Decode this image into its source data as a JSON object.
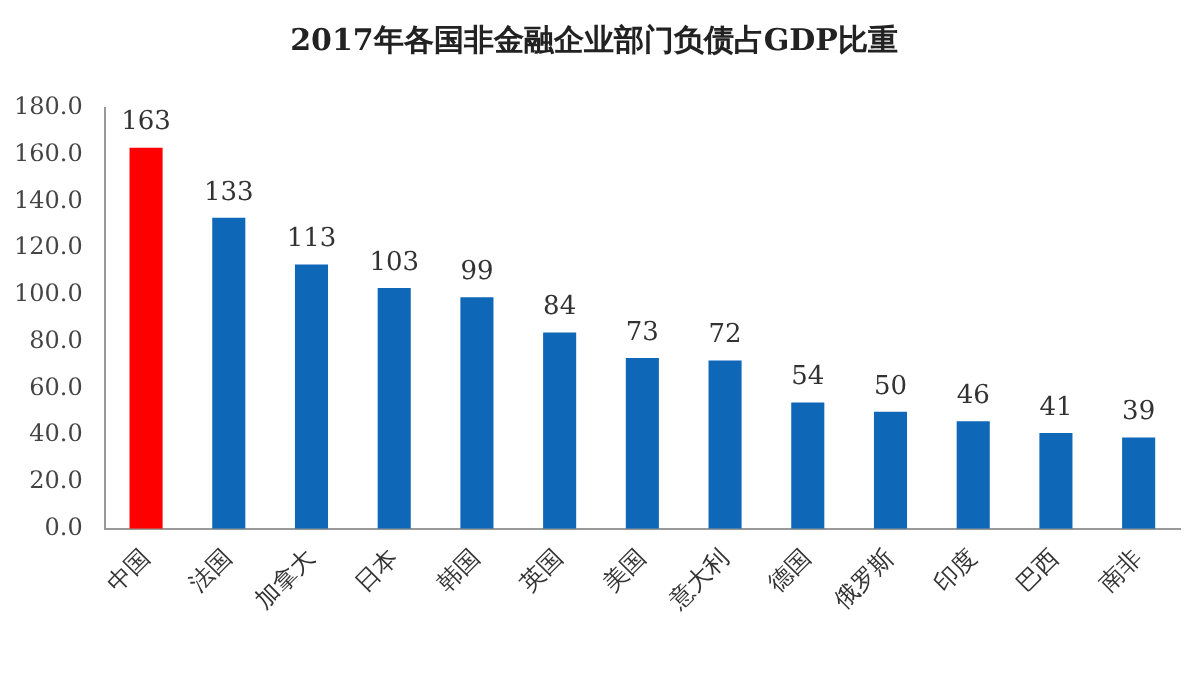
{
  "chart_data": {
    "type": "bar",
    "title": "2017年各国非金融企业部门负债占GDP比重",
    "categories": [
      "中国",
      "法国",
      "加拿大",
      "日本",
      "韩国",
      "英国",
      "美国",
      "意大利",
      "德国",
      "俄罗斯",
      "印度",
      "巴西",
      "南非"
    ],
    "values": [
      163,
      133,
      113,
      103,
      99,
      84,
      73,
      72,
      54,
      50,
      46,
      41,
      39
    ],
    "colors": [
      "#ff0000",
      "#0f67b8",
      "#0f67b8",
      "#0f67b8",
      "#0f67b8",
      "#0f67b8",
      "#0f67b8",
      "#0f67b8",
      "#0f67b8",
      "#0f67b8",
      "#0f67b8",
      "#0f67b8",
      "#0f67b8"
    ],
    "ylim": [
      0,
      180
    ],
    "yticks": [
      {
        "value": 0,
        "label": "0.0"
      },
      {
        "value": 20,
        "label": "20.0"
      },
      {
        "value": 40,
        "label": "40.0"
      },
      {
        "value": 60,
        "label": "60.0"
      },
      {
        "value": 80,
        "label": "80.0"
      },
      {
        "value": 100,
        "label": "100.0"
      },
      {
        "value": 120,
        "label": "120.0"
      },
      {
        "value": 140,
        "label": "140.0"
      },
      {
        "value": 160,
        "label": "160.0"
      },
      {
        "value": 180,
        "label": "180.0"
      }
    ],
    "data_labels": true,
    "grid": false,
    "legend": false
  }
}
